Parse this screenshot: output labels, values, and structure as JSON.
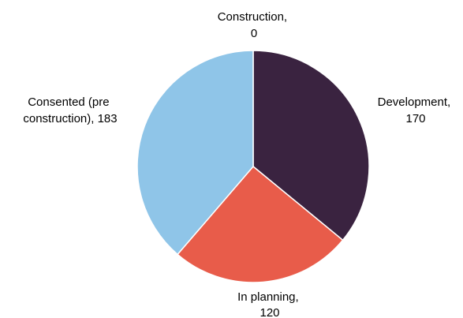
{
  "chart_data": {
    "type": "pie",
    "slices": [
      {
        "name": "Construction",
        "value": 0,
        "color": "#3a2340",
        "label_lines": [
          "Construction,",
          "0"
        ]
      },
      {
        "name": "Development",
        "value": 170,
        "color": "#3a2340",
        "label_lines": [
          "Development,",
          "170"
        ]
      },
      {
        "name": "In planning",
        "value": 120,
        "color": "#e85c4a",
        "label_lines": [
          "In planning,",
          "120"
        ]
      },
      {
        "name": "Consented (pre construction)",
        "value": 183,
        "color": "#8fc5e8",
        "label_lines": [
          "Consented (pre",
          "construction), 183"
        ]
      }
    ]
  }
}
